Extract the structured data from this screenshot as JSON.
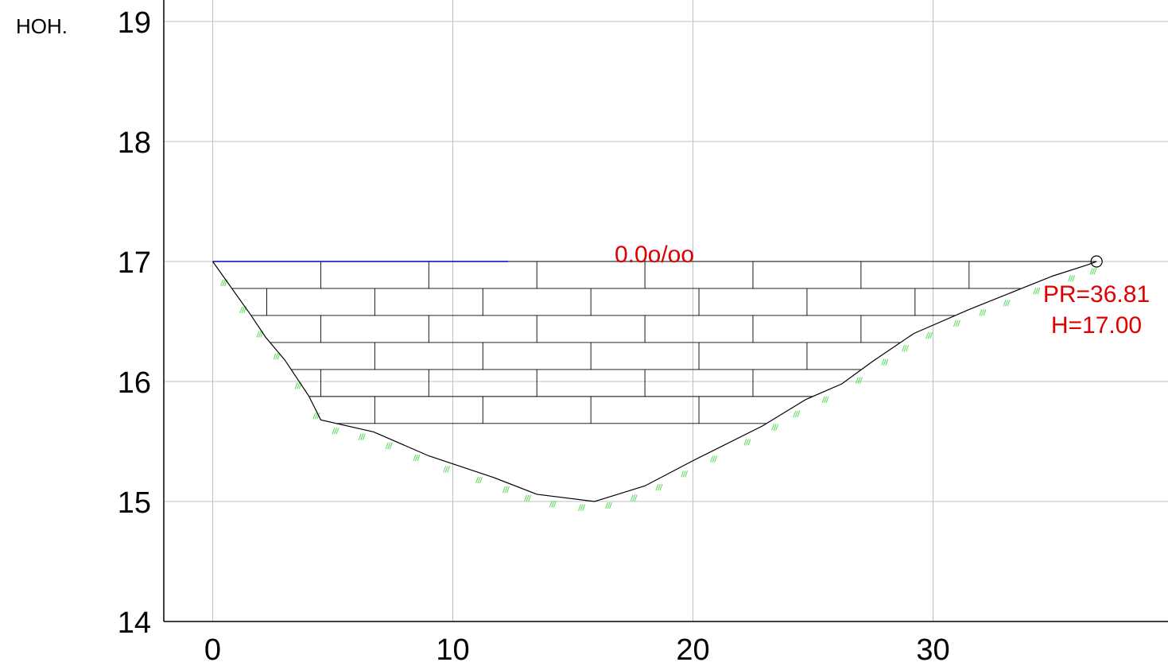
{
  "chart_data": {
    "type": "line",
    "ylabel": "HOH.",
    "xlabel": "",
    "xlim": [
      -2,
      39.7
    ],
    "ylim": [
      14,
      19.2
    ],
    "x_ticks": [
      "0",
      "10",
      "20",
      "30"
    ],
    "y_ticks": [
      "19",
      "18",
      "17",
      "16",
      "15",
      "14"
    ],
    "grid": true,
    "series": [
      {
        "role": "ground-profile",
        "color": "#000000",
        "x": [
          0,
          1.6,
          2.2,
          3.0,
          4.0,
          4.5,
          6.7,
          9.0,
          11.7,
          13.5,
          15.9,
          18.0,
          20.1,
          22.9,
          24.7,
          26.2,
          27.5,
          29.2,
          31.5,
          33.5,
          35.0,
          36.4,
          36.81
        ],
        "y": [
          17.0,
          16.55,
          16.37,
          16.18,
          15.88,
          15.68,
          15.58,
          15.38,
          15.2,
          15.06,
          15.0,
          15.13,
          15.35,
          15.63,
          15.85,
          15.98,
          16.17,
          16.4,
          16.6,
          16.76,
          16.88,
          16.97,
          17.0
        ]
      },
      {
        "role": "slope-line",
        "color": "#0000cc",
        "x": [
          0,
          12.3
        ],
        "y": [
          17.0,
          17.0
        ]
      }
    ],
    "water_level": 17.0,
    "annotations": {
      "slope": "0.0o/oo",
      "pr": "PR=36.81",
      "h": "H=17.00"
    },
    "colors": {
      "grid": "#bfbfbf",
      "profile": "#000000",
      "hatch": "#55dd55",
      "slope_line": "#0000cc",
      "annotation": "#e00000"
    }
  }
}
